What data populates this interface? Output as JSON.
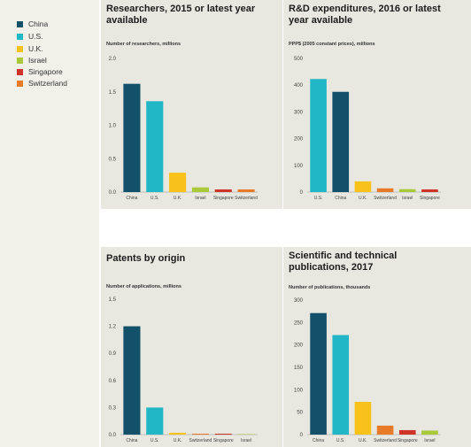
{
  "legend": [
    {
      "name": "China",
      "color": "#13506a"
    },
    {
      "name": "U.S.",
      "color": "#22b7c6"
    },
    {
      "name": "U.K.",
      "color": "#f9c21a"
    },
    {
      "name": "Israel",
      "color": "#a9c93a"
    },
    {
      "name": "Singapore",
      "color": "#cf3327"
    },
    {
      "name": "Switzerland",
      "color": "#e87b2a"
    }
  ],
  "chart_data": [
    {
      "type": "bar",
      "title": "Researchers, 2015 or latest year available",
      "ylabel": "Number of researchers, millions",
      "categories": [
        "China",
        "U.S.",
        "U.K.",
        "Israel",
        "Singapore",
        "Switzerland"
      ],
      "values": [
        1.62,
        1.36,
        0.29,
        0.07,
        0.04,
        0.04
      ],
      "colors": [
        "#13506a",
        "#22b7c6",
        "#f9c21a",
        "#a9c93a",
        "#cf3327",
        "#e87b2a"
      ],
      "ylim": [
        0,
        2.0
      ],
      "yticks": [
        "0.0",
        "0.5",
        "1.0",
        "1.5",
        "2.0"
      ]
    },
    {
      "type": "bar",
      "title": "R&D expenditures, 2016 or latest year available",
      "ylabel": "PPP$ (2005 constant prices), millions",
      "categories": [
        "U.S.",
        "China",
        "U.K.",
        "Switzerland",
        "Israel",
        "Singapore"
      ],
      "values": [
        423,
        375,
        40,
        14,
        11,
        10
      ],
      "colors": [
        "#22b7c6",
        "#13506a",
        "#f9c21a",
        "#e87b2a",
        "#a9c93a",
        "#cf3327"
      ],
      "ylim": [
        0,
        500
      ],
      "yticks": [
        "0",
        "100",
        "200",
        "300",
        "400",
        "500"
      ]
    },
    {
      "type": "bar",
      "title": "Patents by origin",
      "ylabel": "Number of applications, millions",
      "categories": [
        "China",
        "U.S.",
        "U.K.",
        "Switzerland",
        "Singapore",
        "Israel"
      ],
      "values": [
        1.2,
        0.3,
        0.02,
        0.01,
        0.01,
        0.005
      ],
      "colors": [
        "#13506a",
        "#22b7c6",
        "#f9c21a",
        "#e87b2a",
        "#cf3327",
        "#a9c93a"
      ],
      "ylim": [
        0,
        1.5
      ],
      "yticks": [
        "0.0",
        "0.3",
        "0.6",
        "0.9",
        "1.2",
        "1.5"
      ]
    },
    {
      "type": "bar",
      "title": "Scientific and technical publications, 2017",
      "ylabel": "Number of publications, thousands",
      "categories": [
        "China",
        "U.S.",
        "U.K.",
        "Switzerland",
        "Singapore",
        "Israel"
      ],
      "values": [
        271,
        222,
        73,
        20,
        10,
        9
      ],
      "colors": [
        "#13506a",
        "#22b7c6",
        "#f9c21a",
        "#e87b2a",
        "#cf3327",
        "#a9c93a"
      ],
      "ylim": [
        0,
        300
      ],
      "yticks": [
        "0",
        "50",
        "100",
        "150",
        "200",
        "250",
        "300"
      ]
    }
  ]
}
